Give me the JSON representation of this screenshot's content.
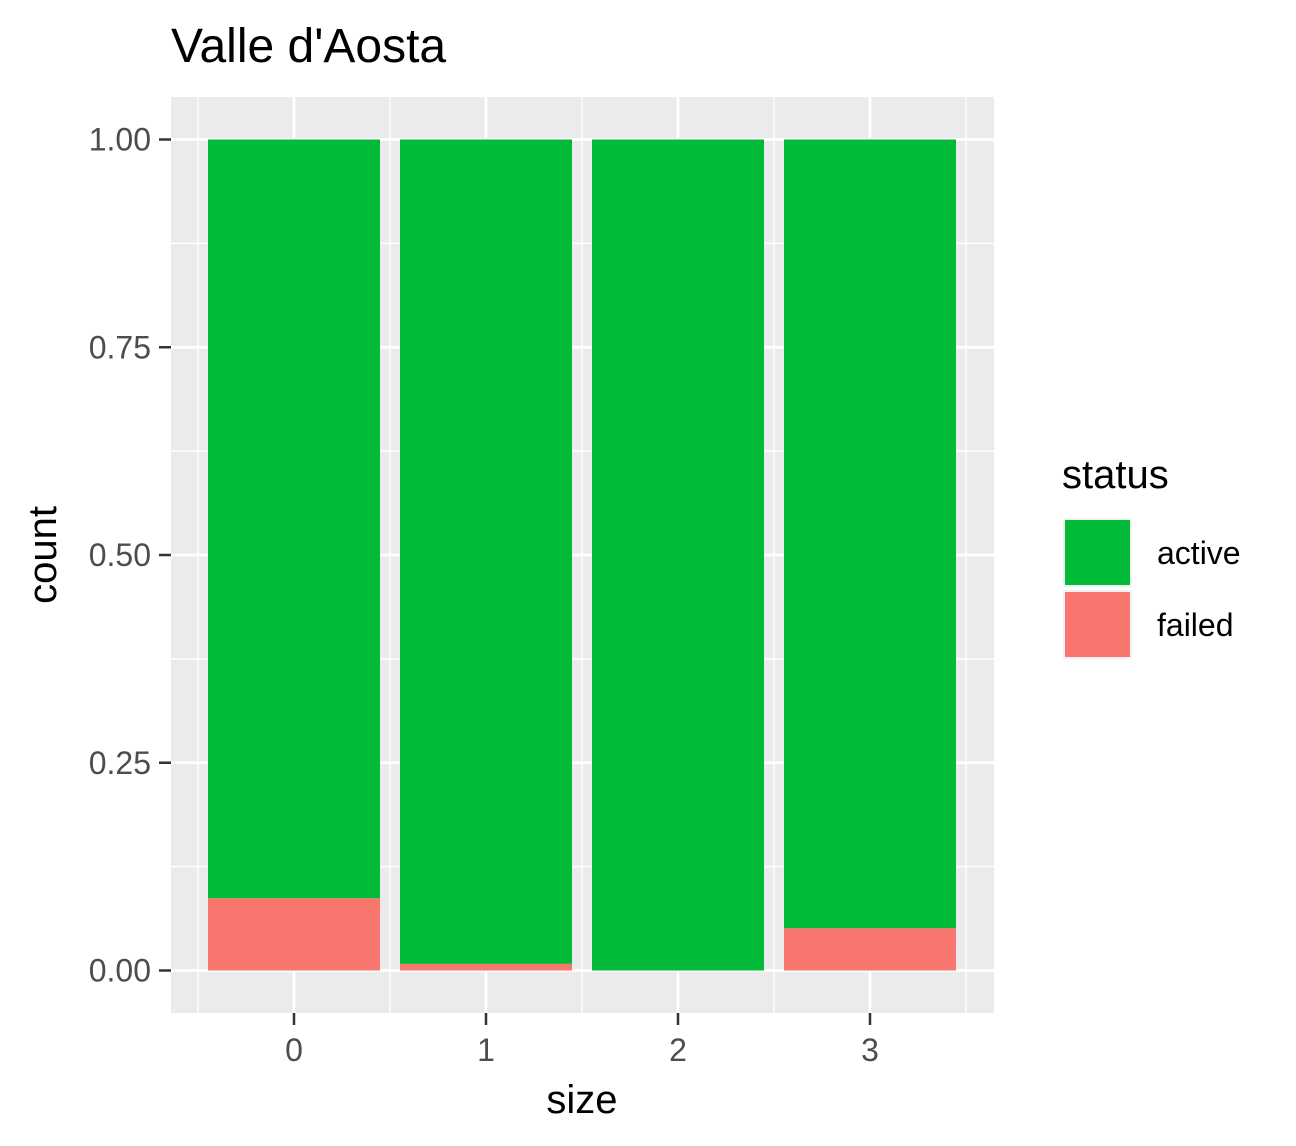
{
  "chart_data": {
    "type": "bar",
    "stacked": true,
    "title": "Valle d'Aosta",
    "xlabel": "size",
    "ylabel": "count",
    "categories": [
      "0",
      "1",
      "2",
      "3"
    ],
    "ylim": [
      0,
      1
    ],
    "yticks": [
      0,
      0.25,
      0.5,
      0.75,
      1
    ],
    "ytick_labels": [
      "0.00",
      "0.25",
      "0.50",
      "0.75",
      "1.00"
    ],
    "grid": true,
    "legend": {
      "title": "status",
      "position": "right"
    },
    "series": [
      {
        "name": "failed",
        "color": "#F8766D",
        "values": [
          0.087,
          0.008,
          0,
          0.051
        ]
      },
      {
        "name": "active",
        "color": "#00BA38",
        "values": [
          0.913,
          0.992,
          1,
          0.949
        ]
      }
    ],
    "legend_order": [
      "active",
      "failed"
    ],
    "colors": {
      "panel_background": "#EBEBEB",
      "grid_line": "#FFFFFF",
      "tick_mark": "#333333"
    }
  }
}
